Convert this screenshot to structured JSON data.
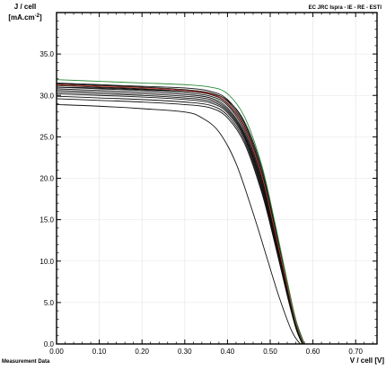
{
  "chart_data": {
    "type": "line",
    "title": "EC JRC Ispra - IE - RE - ESTI",
    "ylabel_line1": "J / cell",
    "ylabel_line2": "[mA.cm",
    "ylabel_sup": "-2",
    "ylabel_end": "]",
    "xlabel": "V / cell [V]",
    "footnote": "Measurement Data",
    "xlim": [
      0,
      0.75
    ],
    "ylim": [
      0,
      40
    ],
    "x_ticks": [
      0.0,
      0.1,
      0.2,
      0.3,
      0.4,
      0.5,
      0.6,
      0.7
    ],
    "x_tick_labels": [
      "0.00",
      "0.10",
      "0.20",
      "0.30",
      "0.40",
      "0.50",
      "0.60",
      "0.70"
    ],
    "y_ticks": [
      0,
      5,
      10,
      15,
      20,
      25,
      30,
      35
    ],
    "y_tick_labels": [
      "0.0",
      "5.0",
      "10.0",
      "15.0",
      "20.0",
      "25.0",
      "30.0",
      "35.0"
    ],
    "grid": true,
    "legend": "none",
    "colors": {
      "frame": "#000000",
      "grid": "#e3e3e3",
      "series_main": "#111111",
      "series_green": "#2e8b3a",
      "series_red": "#c0392b"
    },
    "series": [
      {
        "color": "#111111",
        "x": [
          0.0,
          0.1,
          0.2,
          0.3,
          0.36,
          0.4,
          0.44,
          0.48,
          0.51,
          0.54,
          0.56,
          0.575
        ],
        "y": [
          29.6,
          29.4,
          29.2,
          28.9,
          28.5,
          27.3,
          24.2,
          18.3,
          12.3,
          5.8,
          1.9,
          0.0
        ]
      },
      {
        "color": "#111111",
        "x": [
          0.0,
          0.1,
          0.2,
          0.3,
          0.36,
          0.4,
          0.44,
          0.48,
          0.51,
          0.54,
          0.56,
          0.575
        ],
        "y": [
          29.9,
          29.7,
          29.5,
          29.2,
          28.8,
          27.6,
          24.5,
          18.6,
          12.5,
          6.0,
          2.0,
          0.0
        ]
      },
      {
        "color": "#111111",
        "x": [
          0.0,
          0.1,
          0.2,
          0.3,
          0.36,
          0.4,
          0.44,
          0.48,
          0.51,
          0.54,
          0.56,
          0.576
        ],
        "y": [
          30.2,
          30.0,
          29.8,
          29.5,
          29.1,
          27.9,
          24.8,
          18.9,
          12.7,
          6.1,
          2.1,
          0.0
        ]
      },
      {
        "color": "#111111",
        "x": [
          0.0,
          0.1,
          0.2,
          0.3,
          0.36,
          0.4,
          0.44,
          0.48,
          0.51,
          0.54,
          0.56,
          0.576
        ],
        "y": [
          30.4,
          30.2,
          30.0,
          29.7,
          29.3,
          28.1,
          25.0,
          19.2,
          12.9,
          6.3,
          2.2,
          0.0
        ]
      },
      {
        "color": "#111111",
        "x": [
          0.0,
          0.1,
          0.2,
          0.3,
          0.36,
          0.4,
          0.44,
          0.48,
          0.51,
          0.54,
          0.56,
          0.577
        ],
        "y": [
          30.6,
          30.4,
          30.2,
          29.9,
          29.5,
          28.3,
          25.2,
          19.4,
          13.1,
          6.4,
          2.3,
          0.0
        ]
      },
      {
        "color": "#111111",
        "x": [
          0.0,
          0.1,
          0.2,
          0.3,
          0.36,
          0.4,
          0.44,
          0.48,
          0.51,
          0.54,
          0.56,
          0.577
        ],
        "y": [
          30.8,
          30.6,
          30.4,
          30.1,
          29.7,
          28.5,
          25.4,
          19.7,
          13.3,
          6.6,
          2.4,
          0.0
        ]
      },
      {
        "color": "#111111",
        "x": [
          0.0,
          0.1,
          0.2,
          0.3,
          0.36,
          0.4,
          0.44,
          0.48,
          0.51,
          0.54,
          0.56,
          0.578
        ],
        "y": [
          31.0,
          30.8,
          30.6,
          30.3,
          29.9,
          28.8,
          25.7,
          20.0,
          13.6,
          6.8,
          2.5,
          0.0
        ]
      },
      {
        "color": "#111111",
        "x": [
          0.0,
          0.1,
          0.2,
          0.3,
          0.36,
          0.4,
          0.44,
          0.48,
          0.51,
          0.54,
          0.56,
          0.578
        ],
        "y": [
          31.2,
          31.0,
          30.8,
          30.5,
          30.1,
          29.0,
          26.0,
          20.3,
          13.8,
          6.9,
          2.6,
          0.0
        ]
      },
      {
        "color": "#111111",
        "x": [
          0.0,
          0.1,
          0.2,
          0.3,
          0.36,
          0.4,
          0.44,
          0.48,
          0.51,
          0.54,
          0.56,
          0.579
        ],
        "y": [
          31.4,
          31.2,
          31.0,
          30.7,
          30.3,
          29.3,
          26.3,
          20.6,
          14.1,
          7.1,
          2.7,
          0.0
        ]
      },
      {
        "color": "#111111",
        "x": [
          0.0,
          0.1,
          0.2,
          0.3,
          0.36,
          0.4,
          0.44,
          0.48,
          0.51,
          0.54,
          0.56,
          0.579
        ],
        "y": [
          31.5,
          31.3,
          31.1,
          30.9,
          30.5,
          29.5,
          26.6,
          20.9,
          14.4,
          7.3,
          2.8,
          0.0
        ]
      },
      {
        "color": "#111111",
        "x": [
          0.0,
          0.1,
          0.2,
          0.3,
          0.36,
          0.4,
          0.44,
          0.48,
          0.51,
          0.54,
          0.56,
          0.58
        ],
        "y": [
          31.0,
          30.9,
          30.7,
          30.5,
          30.2,
          29.4,
          26.8,
          21.3,
          14.7,
          7.5,
          2.9,
          0.0
        ]
      },
      {
        "color": "#c0392b",
        "x": [
          0.0,
          0.1,
          0.2,
          0.3,
          0.36,
          0.4,
          0.44,
          0.48,
          0.51,
          0.54,
          0.56,
          0.578
        ],
        "y": [
          31.3,
          31.1,
          30.9,
          30.6,
          30.2,
          29.1,
          26.1,
          20.4,
          13.9,
          7.0,
          2.6,
          0.0
        ]
      },
      {
        "color": "#2e8b3a",
        "x": [
          0.0,
          0.1,
          0.2,
          0.3,
          0.36,
          0.4,
          0.44,
          0.48,
          0.51,
          0.54,
          0.56,
          0.579
        ],
        "y": [
          31.9,
          31.7,
          31.5,
          31.3,
          31.0,
          30.2,
          27.4,
          21.6,
          14.9,
          7.5,
          2.8,
          0.0
        ]
      },
      {
        "color": "#111111",
        "x": [
          0.0,
          0.1,
          0.2,
          0.3,
          0.34,
          0.38,
          0.42,
          0.46,
          0.49,
          0.52,
          0.55,
          0.57
        ],
        "y": [
          28.9,
          28.7,
          28.4,
          28.0,
          27.3,
          25.6,
          21.8,
          15.8,
          10.8,
          5.8,
          1.6,
          0.0
        ]
      }
    ]
  }
}
